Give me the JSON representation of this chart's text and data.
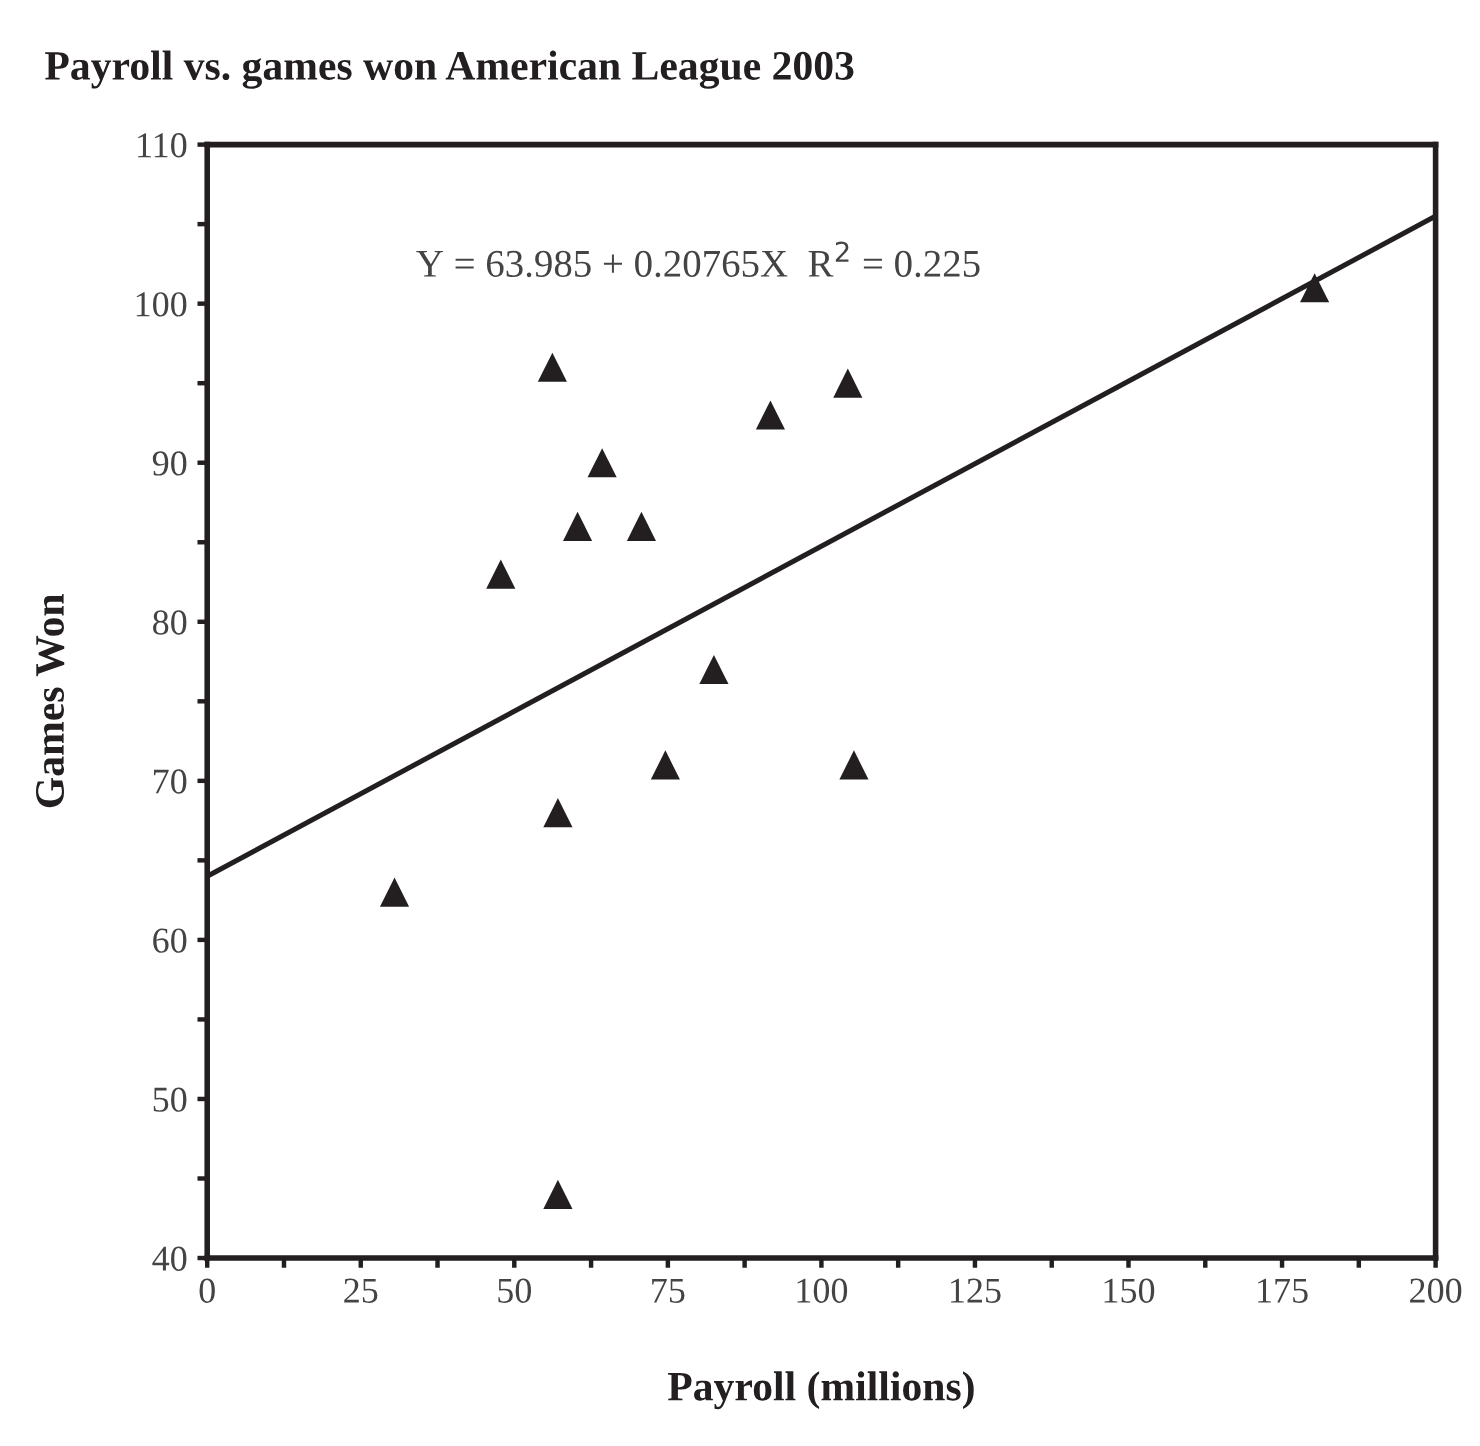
{
  "chart_data": {
    "type": "scatter",
    "title": "Payroll vs. games won American League 2003",
    "xlabel": "Payroll (millions)",
    "ylabel": "Games Won",
    "annotations": [
      "Y = 63.985 + 0.20765X  R$^{2}$ = 0.225"
    ],
    "series": [
      {
        "color": "#231f20",
        "marker": "triangle",
        "x": [
          30.5,
          47.8,
          56.2,
          57.1,
          57.1,
          60.3,
          64.3,
          70.7,
          74.6,
          82.5,
          91.7,
          104.3,
          105.3,
          180.3
        ],
        "values": [
          63,
          83,
          96,
          68,
          44,
          86,
          90,
          86,
          71,
          77,
          93,
          95,
          71,
          101
        ]
      },
      {
        "type": "line",
        "color": "#231f20",
        "marker": "none",
        "line_style": "solid",
        "x": [
          0,
          200
        ],
        "values": [
          64.0,
          105.5
        ]
      }
    ],
    "xlim": [
      0,
      200
    ],
    "ylim": [
      40,
      110
    ],
    "xticks": [
      0,
      {
        "value": 12.5,
        "label": null
      },
      25,
      {
        "value": 37.5,
        "label": null
      },
      50,
      {
        "value": 62.5,
        "label": null
      },
      75,
      {
        "value": 87.5,
        "label": null
      },
      100,
      {
        "value": 112.5,
        "label": null
      },
      125,
      {
        "value": 137.5,
        "label": null
      },
      150,
      {
        "value": 162.5,
        "label": null
      },
      175,
      {
        "value": 187.5,
        "label": null
      },
      200
    ],
    "yticks": [
      40,
      {
        "value": 45,
        "label": null
      },
      50,
      {
        "value": 55,
        "label": null
      },
      60,
      {
        "value": 65,
        "label": null
      },
      70,
      {
        "value": 75,
        "label": null
      },
      80,
      {
        "value": 85,
        "label": null
      },
      90,
      {
        "value": 95,
        "label": null
      },
      100,
      {
        "value": 105,
        "label": null
      },
      110
    ],
    "grid": false,
    "legend": false
  }
}
